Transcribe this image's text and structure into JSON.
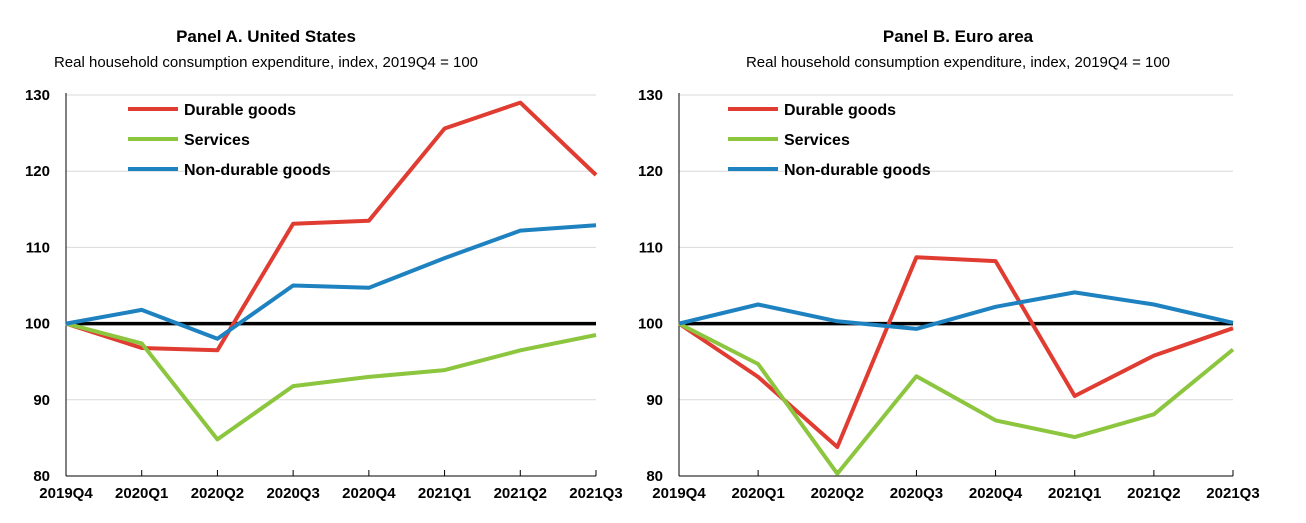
{
  "colors": {
    "durable": "#e03c31",
    "services": "#8cc63f",
    "nondurable": "#1f82c0",
    "reference": "#000000"
  },
  "chart_data": [
    {
      "type": "line",
      "title": "Panel A. United States",
      "subtitle": "Real household consumption expenditure, index, 2019Q4 = 100",
      "xlabel": "",
      "ylabel": "",
      "categories": [
        "2019Q4",
        "2020Q1",
        "2020Q2",
        "2020Q3",
        "2020Q4",
        "2021Q1",
        "2021Q2",
        "2021Q3"
      ],
      "ylim": [
        80,
        130
      ],
      "yticks": [
        80,
        90,
        100,
        110,
        120,
        130
      ],
      "grid": "horizontal",
      "reference_line": 100,
      "legend_position": "top-left",
      "series": [
        {
          "name": "Durable goods",
          "color_key": "durable",
          "values": [
            100,
            96.8,
            96.5,
            113.1,
            113.5,
            125.6,
            129.0,
            119.5
          ]
        },
        {
          "name": "Services",
          "color_key": "services",
          "values": [
            100,
            97.4,
            84.8,
            91.8,
            93.0,
            93.9,
            96.5,
            98.5
          ]
        },
        {
          "name": "Non-durable goods",
          "color_key": "nondurable",
          "values": [
            100,
            101.8,
            98.0,
            105.0,
            104.7,
            108.6,
            112.2,
            112.9
          ]
        }
      ]
    },
    {
      "type": "line",
      "title": "Panel B. Euro area",
      "subtitle": "Real household consumption expenditure, index, 2019Q4 = 100",
      "xlabel": "",
      "ylabel": "",
      "categories": [
        "2019Q4",
        "2020Q1",
        "2020Q2",
        "2020Q3",
        "2020Q4",
        "2021Q1",
        "2021Q2",
        "2021Q3"
      ],
      "ylim": [
        80,
        130
      ],
      "yticks": [
        80,
        90,
        100,
        110,
        120,
        130
      ],
      "grid": "horizontal",
      "reference_line": 100,
      "legend_position": "top-left",
      "series": [
        {
          "name": "Durable goods",
          "color_key": "durable",
          "values": [
            100,
            93.0,
            83.8,
            108.7,
            108.2,
            90.5,
            95.8,
            99.4
          ]
        },
        {
          "name": "Services",
          "color_key": "services",
          "values": [
            100,
            94.7,
            80.3,
            93.1,
            87.3,
            85.1,
            88.1,
            96.6
          ]
        },
        {
          "name": "Non-durable goods",
          "color_key": "nondurable",
          "values": [
            100,
            102.5,
            100.3,
            99.3,
            102.2,
            104.1,
            102.5,
            100.1
          ]
        }
      ]
    }
  ]
}
